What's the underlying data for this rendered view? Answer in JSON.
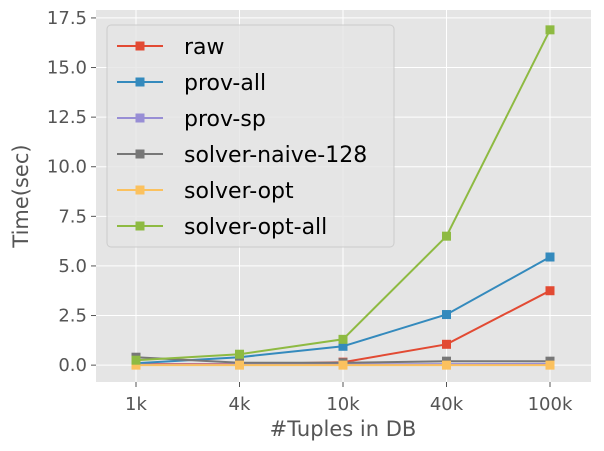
{
  "chart_data": {
    "type": "line",
    "categories": [
      "1k",
      "4k",
      "10k",
      "40k",
      "100k"
    ],
    "xlabel": "#Tuples in DB",
    "ylabel": "Time(sec)",
    "ylim": [
      -0.85,
      17.9
    ],
    "yticks": [
      0.0,
      2.5,
      5.0,
      7.5,
      10.0,
      12.5,
      15.0,
      17.5
    ],
    "ytick_labels": [
      "0.0",
      "2.5",
      "5.0",
      "7.5",
      "10.0",
      "12.5",
      "15.0",
      "17.5"
    ],
    "grid": true,
    "legend_position": "top-left",
    "marker": "square",
    "series": [
      {
        "name": "raw",
        "color": "#E24A33",
        "values": [
          0.05,
          0.05,
          0.15,
          1.05,
          3.75
        ]
      },
      {
        "name": "prov-all",
        "color": "#348ABD",
        "values": [
          0.1,
          0.4,
          0.95,
          2.55,
          5.45
        ]
      },
      {
        "name": "prov-sp",
        "color": "#988ED5",
        "values": [
          0.02,
          0.03,
          0.04,
          0.05,
          0.06
        ]
      },
      {
        "name": "solver-naive-128",
        "color": "#777777",
        "values": [
          0.4,
          0.12,
          0.12,
          0.2,
          0.2
        ]
      },
      {
        "name": "solver-opt",
        "color": "#FBC15E",
        "values": [
          0.0,
          0.0,
          0.0,
          0.0,
          0.0
        ]
      },
      {
        "name": "solver-opt-all",
        "color": "#8EBA42",
        "values": [
          0.25,
          0.55,
          1.3,
          6.5,
          16.9
        ]
      }
    ]
  }
}
